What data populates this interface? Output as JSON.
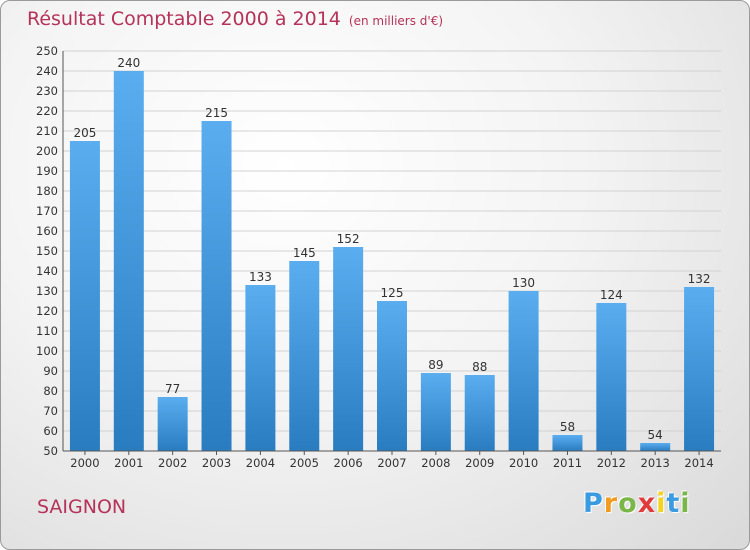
{
  "header": {
    "title": "Résultat Comptable 2000 à 2014",
    "subtitle": "(en milliers d'€)"
  },
  "footer": {
    "city": "SAIGNON",
    "logo": {
      "text": "Proxiti",
      "letters": [
        "P",
        "r",
        "o",
        "x",
        "i",
        "t",
        "i"
      ],
      "colors": [
        "#3a9be0",
        "#f29c1f",
        "#7ab648",
        "#e23b3b",
        "#f2d31f",
        "#3a9be0",
        "#7ab648"
      ]
    }
  },
  "chart_data": {
    "type": "bar",
    "categories": [
      "2000",
      "2001",
      "2002",
      "2003",
      "2004",
      "2005",
      "2006",
      "2007",
      "2008",
      "2009",
      "2010",
      "2011",
      "2012",
      "2013",
      "2014"
    ],
    "values": [
      205,
      240,
      77,
      215,
      133,
      145,
      152,
      125,
      89,
      88,
      130,
      58,
      124,
      54,
      132
    ],
    "title": "Résultat Comptable 2000 à 2014",
    "ylim": [
      50,
      250
    ],
    "yticks": [
      50,
      60,
      70,
      80,
      90,
      100,
      110,
      120,
      130,
      140,
      150,
      160,
      170,
      180,
      190,
      200,
      210,
      220,
      230,
      240,
      250
    ],
    "grid": true,
    "colors": {
      "bar_light": "#5aaef0",
      "bar_dark": "#2a7cc0",
      "grid": "#d2d2d2",
      "axis": "#555555"
    }
  }
}
